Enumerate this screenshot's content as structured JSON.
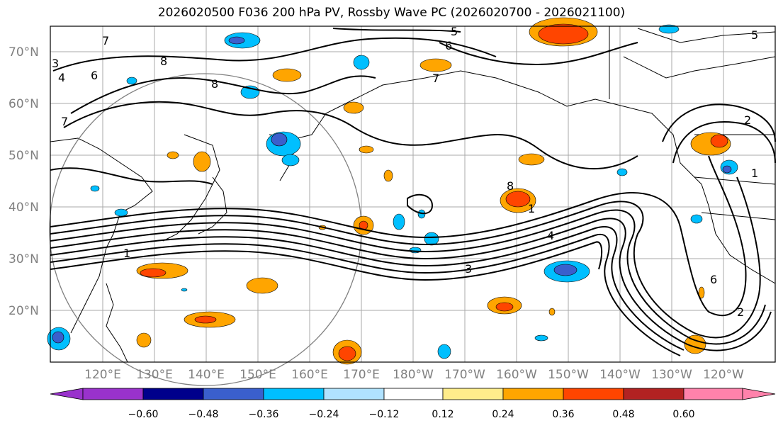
{
  "title": "2026020500 F036 200 hPa PV, Rossby Wave PC (2026020700 - 2026021100)",
  "lat_labels": [
    "70°N",
    "60°N",
    "50°N",
    "40°N",
    "30°N",
    "20°N"
  ],
  "lon_labels": [
    "120°E",
    "130°E",
    "140°E",
    "150°E",
    "160°E",
    "170°E",
    "180°W",
    "170°W",
    "160°W",
    "150°W",
    "140°W",
    "130°W",
    "120°W"
  ],
  "contour_labels": [
    "5",
    "6",
    "8",
    "8",
    "4",
    "3",
    "7",
    "6",
    "7",
    "1",
    "1",
    "3",
    "4",
    "2",
    "2",
    "8",
    "6",
    "1",
    "7",
    "5"
  ],
  "colorbar": {
    "ticks": [
      "−0.60",
      "−0.48",
      "−0.36",
      "−0.24",
      "−0.12",
      "0.12",
      "0.24",
      "0.36",
      "0.48",
      "0.60"
    ],
    "colors": [
      "#9932cc",
      "#00008b",
      "#3a5fcd",
      "#00bfff",
      "#b0e2ff",
      "#ffffff",
      "#ffec8b",
      "#ffa500",
      "#ff4500",
      "#b22222",
      "#ff82ab"
    ]
  },
  "colors": {
    "positive_mid": "#ffa500",
    "positive_high": "#ff4500",
    "negative_mid": "#00bfff",
    "negative_high": "#3a5fcd",
    "grid": "#a9a9a9",
    "label": "#808080"
  }
}
